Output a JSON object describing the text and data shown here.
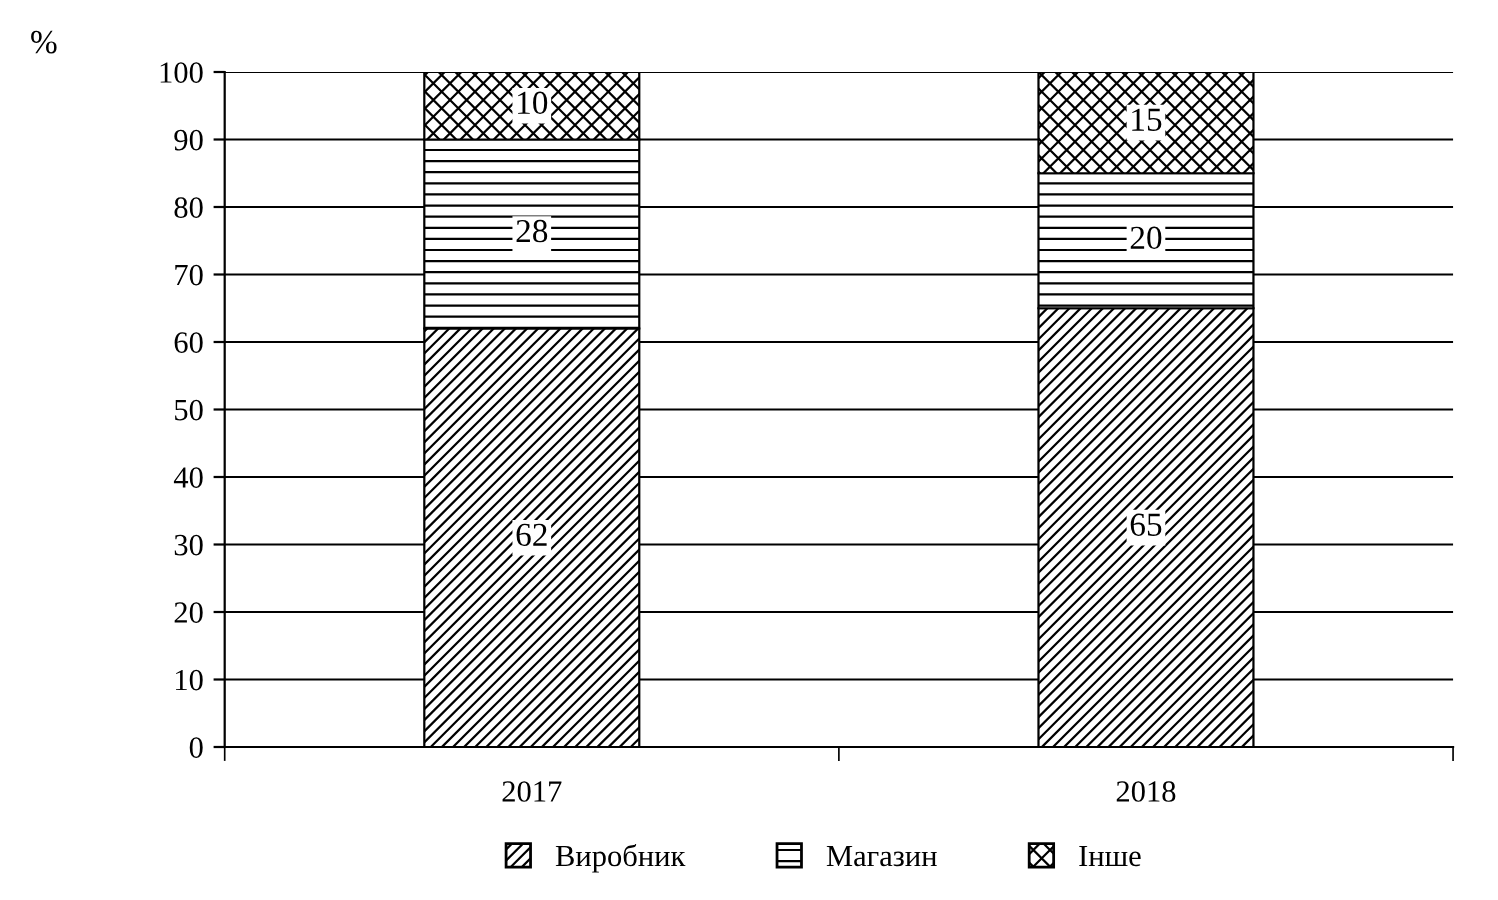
{
  "chart_data": {
    "type": "bar",
    "stacked": true,
    "ylabel": "%",
    "categories": [
      "2017",
      "2018"
    ],
    "series": [
      {
        "name": "Виробник",
        "color": "#000000",
        "values": [
          62,
          65
        ]
      },
      {
        "name": "Магазин",
        "color": "#000000",
        "values": [
          28,
          20
        ]
      },
      {
        "name": "Інше",
        "color": "#000000",
        "values": [
          10,
          15
        ]
      }
    ],
    "ylim": [
      0,
      100
    ],
    "yticks": [
      0,
      10,
      20,
      30,
      40,
      50,
      60,
      70,
      80,
      90,
      100
    ],
    "grid": "y",
    "legend": "bottom",
    "data_labels": true
  }
}
